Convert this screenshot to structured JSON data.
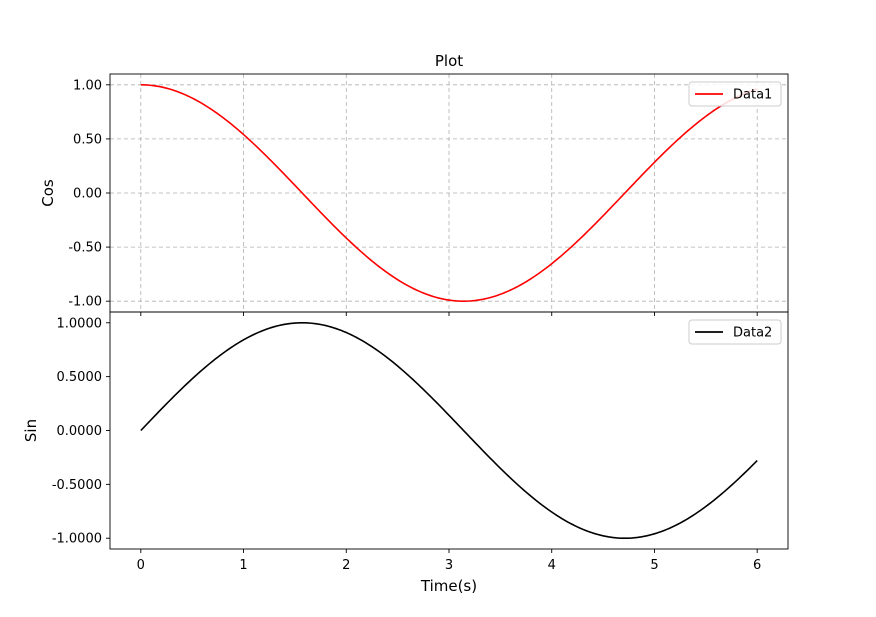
{
  "chart_data": [
    {
      "type": "line",
      "title": "Plot",
      "xlabel": "",
      "ylabel": "Cos",
      "xlim": [
        -0.3,
        6.3
      ],
      "ylim": [
        -1.1,
        1.1
      ],
      "grid": true,
      "legend_position": "top-right",
      "x_ticks": [
        0,
        1,
        2,
        3,
        4,
        5,
        6
      ],
      "y_ticks": [
        1.0,
        0.5,
        0.0,
        -0.5,
        -1.0
      ],
      "y_tick_labels": [
        "1.00",
        "0.50",
        "0.00",
        "-0.50",
        "-1.00"
      ],
      "series": [
        {
          "name": "Data1",
          "color": "#ff0000",
          "function": "cos",
          "x": [
            0.0,
            0.25,
            0.5,
            0.75,
            1.0,
            1.25,
            1.5,
            1.75,
            2.0,
            2.25,
            2.5,
            2.75,
            3.0,
            3.25,
            3.5,
            3.75,
            4.0,
            4.25,
            4.5,
            4.75,
            5.0,
            5.25,
            5.5,
            5.75,
            6.0
          ],
          "y": [
            1.0,
            0.969,
            0.878,
            0.732,
            0.54,
            0.315,
            0.071,
            -0.178,
            -0.416,
            -0.628,
            -0.801,
            -0.924,
            -0.99,
            -0.994,
            -0.936,
            -0.82,
            -0.654,
            -0.446,
            -0.211,
            0.037,
            0.284,
            0.512,
            0.709,
            0.861,
            0.96
          ]
        }
      ]
    },
    {
      "type": "line",
      "title": "",
      "xlabel": "Time(s)",
      "ylabel": "Sin",
      "xlim": [
        -0.3,
        6.3
      ],
      "ylim": [
        -1.1,
        1.1
      ],
      "grid": false,
      "legend_position": "top-right",
      "x_ticks": [
        0,
        1,
        2,
        3,
        4,
        5,
        6
      ],
      "x_tick_labels": [
        "0",
        "1",
        "2",
        "3",
        "4",
        "5",
        "6"
      ],
      "y_ticks": [
        1.0,
        0.5,
        0.0,
        -0.5,
        -1.0
      ],
      "y_tick_labels": [
        "1.0000",
        "0.5000",
        "0.0000",
        "-0.5000",
        "-1.0000"
      ],
      "series": [
        {
          "name": "Data2",
          "color": "#000000",
          "function": "sin",
          "x": [
            0.0,
            0.25,
            0.5,
            0.75,
            1.0,
            1.25,
            1.5,
            1.75,
            2.0,
            2.25,
            2.5,
            2.75,
            3.0,
            3.25,
            3.5,
            3.75,
            4.0,
            4.25,
            4.5,
            4.75,
            5.0,
            5.25,
            5.5,
            5.75,
            6.0
          ],
          "y": [
            0.0,
            0.247,
            0.479,
            0.682,
            0.841,
            0.949,
            0.997,
            0.984,
            0.909,
            0.778,
            0.598,
            0.382,
            0.141,
            -0.108,
            -0.351,
            -0.572,
            -0.757,
            -0.895,
            -0.978,
            -0.999,
            -0.959,
            -0.859,
            -0.706,
            -0.508,
            -0.279
          ]
        }
      ]
    }
  ]
}
